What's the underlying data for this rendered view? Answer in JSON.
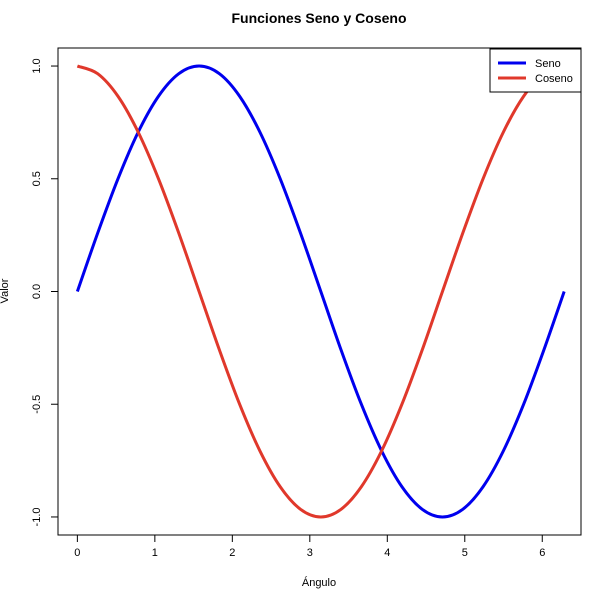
{
  "chart_data": {
    "type": "line",
    "title": "Funciones Seno y Coseno",
    "xlabel": "Ángulo",
    "ylabel": "Valor",
    "xlim": [
      -0.25,
      6.5
    ],
    "ylim": [
      -1.08,
      1.08
    ],
    "x_ticks": [
      0,
      1,
      2,
      3,
      4,
      5,
      6
    ],
    "x_tick_labels": [
      "0",
      "1",
      "2",
      "3",
      "4",
      "5",
      "6"
    ],
    "y_ticks": [
      -1.0,
      -0.5,
      0.0,
      0.5,
      1.0
    ],
    "y_tick_labels": [
      "-1.0",
      "-0.5",
      "0.0",
      "0.5",
      "1.0"
    ],
    "grid": false,
    "legend_position": "top-right",
    "series": [
      {
        "name": "Seno",
        "color": "#0000ee",
        "x": [
          0,
          0.262,
          0.524,
          0.785,
          1.047,
          1.309,
          1.571,
          1.833,
          2.094,
          2.356,
          2.618,
          2.88,
          3.142,
          3.403,
          3.665,
          3.927,
          4.189,
          4.451,
          4.712,
          4.974,
          5.236,
          5.498,
          5.76,
          6.021,
          6.283
        ],
        "values": [
          0.0,
          0.259,
          0.5,
          0.707,
          0.866,
          0.966,
          1.0,
          0.966,
          0.866,
          0.707,
          0.5,
          0.259,
          0.0,
          -0.259,
          -0.5,
          -0.707,
          -0.866,
          -0.966,
          -1.0,
          -0.966,
          -0.866,
          -0.707,
          -0.5,
          -0.259,
          0.0
        ]
      },
      {
        "name": "Coseno",
        "color": "#e0382b",
        "x": [
          0,
          0.262,
          0.524,
          0.785,
          1.047,
          1.309,
          1.571,
          1.833,
          2.094,
          2.356,
          2.618,
          2.88,
          3.142,
          3.403,
          3.665,
          3.927,
          4.189,
          4.451,
          4.712,
          4.974,
          5.236,
          5.498,
          5.76,
          6.021,
          6.283
        ],
        "values": [
          1.0,
          0.966,
          0.866,
          0.707,
          0.5,
          0.259,
          0.0,
          -0.259,
          -0.5,
          -0.707,
          -0.866,
          -0.966,
          -1.0,
          -0.966,
          -0.866,
          -0.707,
          -0.5,
          -0.259,
          0.0,
          0.259,
          0.5,
          0.707,
          0.866,
          0.966,
          1.0
        ]
      }
    ]
  }
}
